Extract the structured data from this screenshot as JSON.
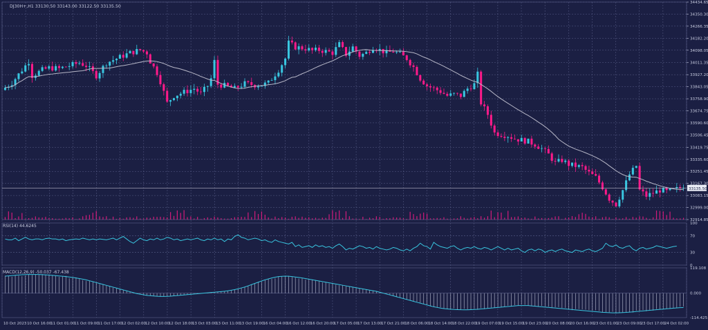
{
  "window": {
    "symbol_info": "DJ30H+,H1  33130.50  33143.00  33122.50  33135.50"
  },
  "colors": {
    "background": "#1b1f43",
    "grid": "#5a608a",
    "bull": "#39c6e0",
    "bear": "#ff1a8a",
    "ma": "#b8b8c8",
    "text": "#c8cce0",
    "rsi_line": "#39c6e0",
    "macd_line": "#39c6e0",
    "macd_hist": "#c8cce0",
    "volume": "#ff1a8a"
  },
  "chart_data": [
    {
      "type": "candlestick",
      "title": "DJ30H+,H1",
      "ylim": [
        32914.85,
        34434.65
      ],
      "y_ticks": [
        "34434.65",
        "34350.30",
        "34266.35",
        "34182.20",
        "34098.05",
        "34011.35",
        "33927.20",
        "33843.05",
        "33758.90",
        "33674.75",
        "33590.60",
        "33506.45",
        "33419.75",
        "33335.60",
        "33251.45",
        "33167.30",
        "33083.15",
        "32999.00",
        "32914.85"
      ],
      "current_price": "33135.50",
      "x_labels": [
        "10 Oct 2023",
        "10 Oct 16:00",
        "11 Oct 01:00",
        "11 Oct 09:00",
        "11 Oct 17:00",
        "12 Oct 02:00",
        "12 Oct 10:00",
        "12 Oct 18:00",
        "13 Oct 03:00",
        "13 Oct 11:00",
        "13 Oct 19:00",
        "16 Oct 04:00",
        "16 Oct 12:00",
        "16 Oct 20:00",
        "17 Oct 05:00",
        "17 Oct 13:00",
        "17 Oct 21:00",
        "18 Oct 06:00",
        "18 Oct 14:00",
        "18 Oct 22:00",
        "19 Oct 07:00",
        "19 Oct 15:00",
        "19 Oct 23:00",
        "20 Oct 08:00",
        "20 Oct 16:00",
        "23 Oct 01:00",
        "23 Oct 09:00",
        "23 Oct 17:00",
        "24 Oct 02:00"
      ],
      "path_points": [
        [
          0,
          33820
        ],
        [
          3,
          33870
        ],
        [
          6,
          33960
        ],
        [
          8,
          34020
        ],
        [
          9,
          33920
        ],
        [
          12,
          33960
        ],
        [
          14,
          33975
        ],
        [
          17,
          33970
        ],
        [
          20,
          33990
        ],
        [
          23,
          34010
        ],
        [
          25,
          33990
        ],
        [
          28,
          33920
        ],
        [
          31,
          34010
        ],
        [
          35,
          34050
        ],
        [
          38,
          34080
        ],
        [
          41,
          34100
        ],
        [
          43,
          34080
        ],
        [
          44,
          34020
        ],
        [
          46,
          33940
        ],
        [
          47,
          33880
        ],
        [
          49,
          33730
        ],
        [
          51,
          33780
        ],
        [
          54,
          33805
        ],
        [
          57,
          33830
        ],
        [
          59,
          33795
        ],
        [
          61,
          33850
        ],
        [
          62,
          33900
        ],
        [
          63,
          34020
        ],
        [
          64,
          33860
        ],
        [
          66,
          33850
        ],
        [
          69,
          33830
        ],
        [
          72,
          33865
        ],
        [
          75,
          33855
        ],
        [
          77,
          33855
        ],
        [
          79,
          33870
        ],
        [
          82,
          33960
        ],
        [
          84,
          34040
        ],
        [
          85,
          34150
        ],
        [
          87,
          34120
        ],
        [
          90,
          34110
        ],
        [
          92,
          34095
        ],
        [
          94,
          34100
        ],
        [
          96,
          34090
        ],
        [
          98,
          34080
        ],
        [
          100,
          34140
        ],
        [
          102,
          34070
        ],
        [
          104,
          34120
        ],
        [
          106,
          34060
        ],
        [
          108,
          34080
        ],
        [
          110,
          34120
        ],
        [
          112,
          34100
        ],
        [
          114,
          34080
        ],
        [
          116,
          34090
        ],
        [
          118,
          34070
        ],
        [
          120,
          34040
        ],
        [
          122,
          33980
        ],
        [
          124,
          33900
        ],
        [
          126,
          33850
        ],
        [
          128,
          33830
        ],
        [
          130,
          33810
        ],
        [
          132,
          33780
        ],
        [
          134,
          33790
        ],
        [
          136,
          33780
        ],
        [
          138,
          33830
        ],
        [
          140,
          33860
        ],
        [
          141,
          33930
        ],
        [
          142,
          33730
        ],
        [
          144,
          33650
        ],
        [
          146,
          33520
        ],
        [
          148,
          33510
        ],
        [
          150,
          33500
        ],
        [
          152,
          33480
        ],
        [
          154,
          33470
        ],
        [
          156,
          33460
        ],
        [
          158,
          33440
        ],
        [
          160,
          33410
        ],
        [
          162,
          33370
        ],
        [
          164,
          33310
        ],
        [
          166,
          33330
        ],
        [
          168,
          33300
        ],
        [
          170,
          33290
        ],
        [
          172,
          33280
        ],
        [
          174,
          33240
        ],
        [
          176,
          33210
        ],
        [
          178,
          33140
        ],
        [
          180,
          33060
        ],
        [
          182,
          33020
        ],
        [
          184,
          33120
        ],
        [
          186,
          33230
        ],
        [
          188,
          33290
        ],
        [
          189,
          33120
        ],
        [
          191,
          33080
        ],
        [
          193,
          33100
        ],
        [
          195,
          33120
        ],
        [
          197,
          33110
        ],
        [
          199,
          33120
        ],
        [
          201,
          33135.5
        ]
      ],
      "ma_period": 24
    },
    {
      "type": "line",
      "title": "RSI(14) 44.6245",
      "ylim": [
        0,
        100
      ],
      "y_ticks": [
        "100",
        "70",
        "30",
        "0"
      ],
      "levels": [
        70,
        30
      ],
      "values": [
        62,
        60,
        60,
        64,
        58,
        62,
        66,
        62,
        60,
        62,
        62,
        60,
        63,
        64,
        62,
        62,
        60,
        62,
        58,
        60,
        61,
        62,
        61,
        64,
        62,
        60,
        62,
        60,
        62,
        61,
        60,
        62,
        64,
        60,
        64,
        68,
        62,
        56,
        52,
        58,
        64,
        60,
        58,
        62,
        60,
        64,
        60,
        62,
        66,
        64,
        60,
        62,
        58,
        60,
        62,
        60,
        62,
        64,
        60,
        58,
        62,
        60,
        64,
        60,
        62,
        56,
        62,
        60,
        68,
        72,
        66,
        64,
        60,
        62,
        64,
        62,
        58,
        60,
        56,
        54,
        60,
        56,
        54,
        52,
        50,
        54,
        44,
        48,
        42,
        44,
        46,
        42,
        48,
        44,
        46,
        42,
        44,
        40,
        46,
        50,
        44,
        36,
        40,
        38,
        42,
        46,
        44,
        40,
        42,
        38,
        44,
        40,
        38,
        36,
        38,
        42,
        40,
        36,
        34,
        38,
        34,
        40,
        44,
        52,
        46,
        44,
        38,
        54,
        48,
        44,
        42,
        40,
        44,
        46,
        40,
        36,
        40,
        42,
        40,
        44,
        40,
        38,
        42,
        40,
        36,
        40,
        44,
        40,
        36,
        40,
        36,
        38,
        40,
        34,
        30,
        36,
        38,
        34,
        38,
        36,
        30,
        34,
        36,
        32,
        36,
        38,
        34,
        32,
        30,
        36,
        34,
        32,
        36,
        38,
        34,
        32,
        36,
        40,
        52,
        46,
        44,
        48,
        42,
        40,
        44,
        46,
        38,
        34,
        40,
        42,
        38,
        40,
        42,
        46,
        44,
        42,
        40,
        42,
        44,
        45
      ]
    },
    {
      "type": "bar",
      "title": "MACD(12,26,9) -50.037 -67.438",
      "ylim": [
        -114.425,
        119.108
      ],
      "y_ticks": [
        "119.108",
        "0.000",
        "-114.425"
      ],
      "signal": [
        80,
        82,
        84,
        86,
        87,
        88,
        88,
        88,
        87,
        86,
        84,
        82,
        80,
        78,
        75,
        72,
        68,
        64,
        58,
        52,
        46,
        40,
        34,
        28,
        22,
        16,
        10,
        4,
        -2,
        -6,
        -10,
        -12,
        -14,
        -15,
        -15,
        -14,
        -12,
        -10,
        -8,
        -6,
        -4,
        -2,
        0,
        2,
        4,
        6,
        8,
        10,
        14,
        18,
        24,
        30,
        38,
        46,
        54,
        62,
        68,
        74,
        78,
        80,
        80,
        78,
        75,
        72,
        68,
        64,
        60,
        56,
        52,
        48,
        44,
        40,
        36,
        32,
        28,
        24,
        20,
        16,
        12,
        8,
        2,
        -4,
        -10,
        -16,
        -22,
        -28,
        -34,
        -40,
        -46,
        -52,
        -58,
        -64,
        -68,
        -72,
        -74,
        -76,
        -77,
        -78,
        -78,
        -77,
        -76,
        -74,
        -72,
        -70,
        -68,
        -66,
        -64,
        -62,
        -60,
        -58,
        -58,
        -58,
        -60,
        -62,
        -64,
        -66,
        -68,
        -70,
        -72,
        -74,
        -76,
        -78,
        -80,
        -82,
        -84,
        -86,
        -88,
        -90,
        -91,
        -92,
        -92,
        -91,
        -90,
        -88,
        -86,
        -84,
        -82,
        -80,
        -78,
        -76,
        -74,
        -72,
        -70,
        -68,
        -67.4
      ]
    }
  ]
}
